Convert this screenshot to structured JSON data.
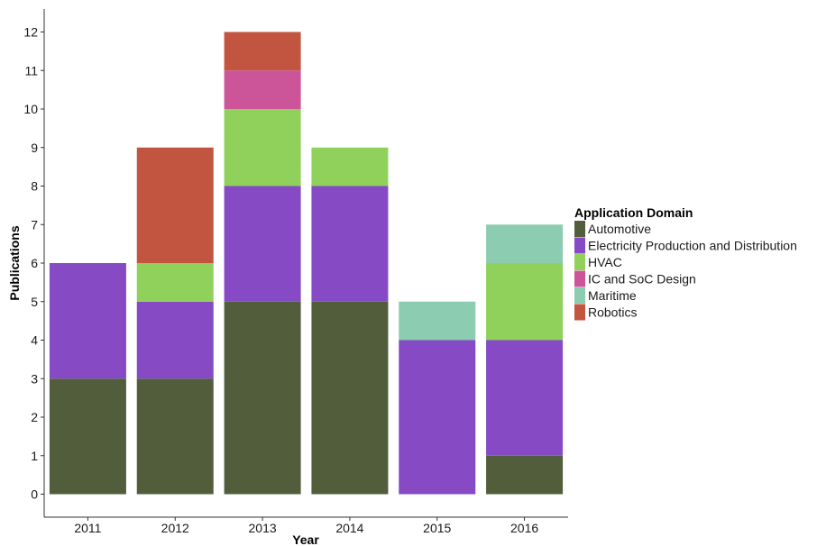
{
  "chart_data": {
    "type": "bar",
    "stacked": true,
    "xlabel": "Year",
    "ylabel": "Publications",
    "ylim": [
      0,
      12
    ],
    "yticks": [
      0,
      1,
      2,
      3,
      4,
      5,
      6,
      7,
      8,
      9,
      10,
      11,
      12
    ],
    "categories": [
      "2011",
      "2012",
      "2013",
      "2014",
      "2015",
      "2016"
    ],
    "legend_title": "Application Domain",
    "legend_position": "right",
    "grid": false,
    "series": [
      {
        "name": "Automotive",
        "color": "#525e3b",
        "values": [
          3,
          3,
          5,
          5,
          0,
          1
        ]
      },
      {
        "name": "Electricity Production and Distribution",
        "color": "#854ac4",
        "values": [
          3,
          2,
          3,
          3,
          4,
          3
        ]
      },
      {
        "name": "HVAC",
        "color": "#8fd15a",
        "values": [
          0,
          1,
          2,
          1,
          0,
          2
        ]
      },
      {
        "name": "IC and SoC Design",
        "color": "#cc5499",
        "values": [
          0,
          0,
          1,
          0,
          0,
          0
        ]
      },
      {
        "name": "Maritime",
        "color": "#8cccb0",
        "values": [
          0,
          0,
          0,
          0,
          1,
          1
        ]
      },
      {
        "name": "Robotics",
        "color": "#c25540",
        "values": [
          0,
          3,
          1,
          0,
          0,
          0
        ]
      }
    ]
  }
}
